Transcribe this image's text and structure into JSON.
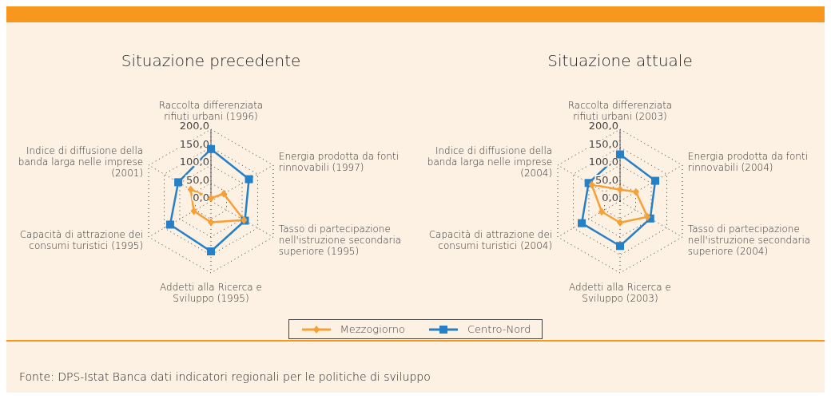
{
  "chart_data": [
    {
      "type": "radar",
      "title": "Situazione precedente",
      "categories": [
        "Raccolta differenziata rifiuti urbani (1996)",
        "Energia prodotta da fonti rinnovabili (1997)",
        "Tasso di partecipazione nell'istruzione secondaria superiore (1995)",
        "Addetti alla Ricerca e Sviluppo (1995)",
        "Capacità di attrazione dei consumi turistici (1995)",
        "Indice di diffusione della banda larga nelle imprese (2001)"
      ],
      "series": [
        {
          "name": "Mezzogiorno",
          "color": "#f7a035",
          "marker": "diamond",
          "values": [
            8,
            41,
            106,
            59,
            55,
            65
          ]
        },
        {
          "name": "Centro-Nord",
          "color": "#2680c8",
          "marker": "square",
          "values": [
            145,
            122,
            109,
            140,
            131,
            105
          ]
        }
      ],
      "ylim": [
        0,
        200
      ],
      "yticks": [
        {
          "value": 0,
          "label": "0,0"
        },
        {
          "value": 50,
          "label": "50,0"
        },
        {
          "value": 100,
          "label": "100,0"
        },
        {
          "value": 150,
          "label": "150,0"
        },
        {
          "value": 200,
          "label": "200,0"
        }
      ],
      "grid": true,
      "legend": "bottom",
      "annotations": [
        "Fonte: DPS-Istat Banca dati indicatori regionali per le politiche di sviluppo"
      ]
    },
    {
      "type": "radar",
      "title": "Situazione attuale",
      "categories": [
        "Raccolta differenziata rifiuti urbani (2003)",
        "Energia prodotta da fonti rinnovabili (2004)",
        "Tasso di partecipazione nell'istruzione secondaria superiore (2004)",
        "Addetti alla Ricerca e Sviluppo (2003)",
        "Capacità di attrazione dei consumi turistici (2004)",
        "Indice di diffusione della banda larga nelle imprese (2004)"
      ],
      "series": [
        {
          "name": "Mezzogiorno",
          "color": "#f7a035",
          "marker": "diamond",
          "values": [
            32,
            51,
            88,
            60,
            59,
            91
          ]
        },
        {
          "name": "Centro-Nord",
          "color": "#2680c8",
          "marker": "square",
          "values": [
            130,
            113,
            97,
            125,
            123,
            101
          ]
        }
      ],
      "ylim": [
        0,
        200
      ],
      "yticks": [
        {
          "value": 0,
          "label": "0,0"
        },
        {
          "value": 50,
          "label": "50,0"
        },
        {
          "value": 100,
          "label": "100,0"
        },
        {
          "value": 150,
          "label": "150,0"
        },
        {
          "value": 200,
          "label": "200,0"
        }
      ],
      "grid": true
    }
  ]
}
